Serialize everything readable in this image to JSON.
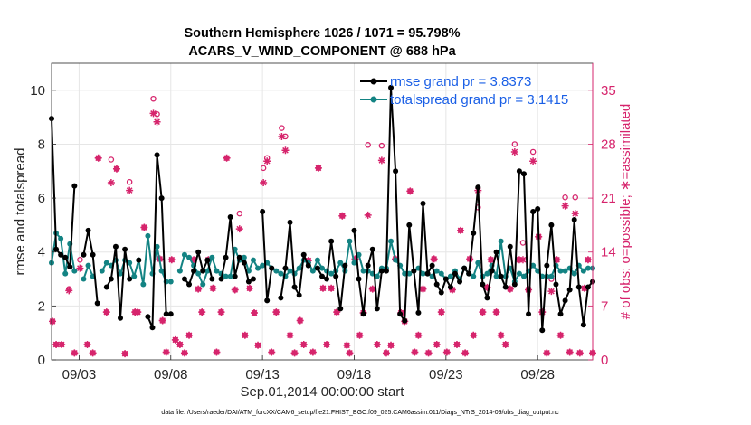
{
  "chart_data": {
    "type": "line",
    "title_line1": "Southern Hemisphere 1026 / 1071 = 95.798%",
    "title_line2": "ACARS_V_WIND_COMPONENT @ 688 hPa",
    "xlabel": "Sep.01,2014 00:00:00 start",
    "ylabel_left": "rmse and totalspread",
    "ylabel_right": "# of obs: o=possible; ∗=assimilated",
    "footnote": "data file: /Users/raeder/DAI/ATM_forcXX/CAM6_setup/f.e21.FHIST_BGC.f09_025.CAM6assim.011/Diags_NTrS_2014-09/obs_diag_output.nc",
    "xlim": [
      1.5,
      31.0
    ],
    "ylim_left": [
      0,
      11
    ],
    "ylim_right": [
      0,
      38.5
    ],
    "x_ticks": [
      {
        "value": 3,
        "label": "09/03"
      },
      {
        "value": 8,
        "label": "09/08"
      },
      {
        "value": 13,
        "label": "09/13"
      },
      {
        "value": 18,
        "label": "09/18"
      },
      {
        "value": 23,
        "label": "09/23"
      },
      {
        "value": 28,
        "label": "09/28"
      }
    ],
    "y_ticks_left": [
      "0",
      "2",
      "4",
      "6",
      "8",
      "10"
    ],
    "y_ticks_right": [
      "0",
      "7",
      "14",
      "21",
      "28",
      "35"
    ],
    "grid": true,
    "legend_placement": "top-right",
    "colors": {
      "rmse": "#000000",
      "totalspread": "#138383",
      "obs": "#d6246c",
      "legend_text": "#1a5fe6",
      "grid": "#e6e6e6"
    },
    "x": [
      1.5,
      1.75,
      2.0,
      2.25,
      2.5,
      2.75,
      3.0,
      3.25,
      3.5,
      3.75,
      4.0,
      4.25,
      4.5,
      4.75,
      5.0,
      5.25,
      5.5,
      5.75,
      6.0,
      6.25,
      6.5,
      6.75,
      7.0,
      7.25,
      7.5,
      7.75,
      8.0,
      8.25,
      8.5,
      8.75,
      9.0,
      9.25,
      9.5,
      9.75,
      10.0,
      10.25,
      10.5,
      10.75,
      11.0,
      11.25,
      11.5,
      11.75,
      12.0,
      12.25,
      12.5,
      12.75,
      13.0,
      13.25,
      13.5,
      13.75,
      14.0,
      14.25,
      14.5,
      14.75,
      15.0,
      15.25,
      15.5,
      15.75,
      16.0,
      16.25,
      16.5,
      16.75,
      17.0,
      17.25,
      17.5,
      17.75,
      18.0,
      18.25,
      18.5,
      18.75,
      19.0,
      19.25,
      19.5,
      19.75,
      20.0,
      20.25,
      20.5,
      20.75,
      21.0,
      21.25,
      21.5,
      21.75,
      22.0,
      22.25,
      22.5,
      22.75,
      23.0,
      23.25,
      23.5,
      23.75,
      24.0,
      24.25,
      24.5,
      24.75,
      25.0,
      25.25,
      25.5,
      25.75,
      26.0,
      26.25,
      26.5,
      26.75,
      27.0,
      27.25,
      27.5,
      27.75,
      28.0,
      28.25,
      28.5,
      28.75,
      29.0,
      29.25,
      29.5,
      29.75,
      30.0,
      30.25,
      30.5,
      30.75,
      31.0
    ],
    "series": [
      {
        "name": "rmse grand pr = 3.8373",
        "legend_label": "rmse grand pr = 3.8373",
        "values": [
          8.95,
          4.1,
          3.9,
          3.8,
          3.45,
          6.45,
          null,
          3.9,
          4.8,
          3.9,
          2.1,
          null,
          2.7,
          3.0,
          4.2,
          1.55,
          4.1,
          3.0,
          null,
          3.7,
          null,
          1.6,
          1.2,
          7.6,
          6.0,
          1.7,
          1.7,
          null,
          null,
          3.0,
          2.8,
          3.3,
          4.0,
          3.3,
          3.7,
          3.0,
          null,
          3.0,
          3.8,
          5.3,
          3.1,
          3.8,
          3.6,
          2.9,
          3.0,
          null,
          5.5,
          2.2,
          3.4,
          null,
          2.3,
          3.4,
          5.1,
          2.7,
          2.4,
          3.9,
          3.5,
          null,
          3.4,
          3.1,
          3.0,
          4.4,
          3.1,
          1.9,
          3.5,
          null,
          4.8,
          3.0,
          1.7,
          3.5,
          4.1,
          1.9,
          3.3,
          3.3,
          10.1,
          7.0,
          1.7,
          1.45,
          5.0,
          3.3,
          1.75,
          5.8,
          3.2,
          3.5,
          2.8,
          2.5,
          3.0,
          2.7,
          3.2,
          2.9,
          3.4,
          3.2,
          4.7,
          6.4,
          2.8,
          2.3,
          3.3,
          4.0,
          3.1,
          2.7,
          4.2,
          2.8,
          7.0,
          6.9,
          1.7,
          5.5,
          5.6,
          1.1,
          3.5,
          5.0,
          2.8,
          1.7,
          2.2,
          2.6,
          5.2,
          2.7,
          1.3,
          2.7,
          2.9
        ]
      },
      {
        "name": "totalspread grand pr = 3.1415",
        "legend_label": "totalspread grand pr = 3.1415",
        "values": [
          3.6,
          4.7,
          4.5,
          3.2,
          4.3,
          3.3,
          null,
          3.0,
          3.5,
          3.1,
          null,
          3.3,
          3.6,
          3.5,
          3.7,
          3.2,
          3.7,
          3.6,
          3.1,
          3.7,
          2.8,
          4.6,
          3.2,
          4.2,
          3.3,
          2.9,
          2.9,
          null,
          3.3,
          3.9,
          3.8,
          3.5,
          3.2,
          2.8,
          3.3,
          3.8,
          3.3,
          3.2,
          3.1,
          3.1,
          4.1,
          3.7,
          3.8,
          3.3,
          3.7,
          3.4,
          3.5,
          3.6,
          3.4,
          3.3,
          3.2,
          3.1,
          3.3,
          3.2,
          3.4,
          3.7,
          3.6,
          3.3,
          3.7,
          3.4,
          3.3,
          3.2,
          3.3,
          3.6,
          3.3,
          4.4,
          3.6,
          3.9,
          3.3,
          3.3,
          3.2,
          3.1,
          3.4,
          3.4,
          4.4,
          3.7,
          3.5,
          3.2,
          3.2,
          3.3,
          3.4,
          3.2,
          3.2,
          3.1,
          3.3,
          3.2,
          3.0,
          3.1,
          3.3,
          3.0,
          3.4,
          3.2,
          3.1,
          3.6,
          3.1,
          3.2,
          3.5,
          3.1,
          4.4,
          3.1,
          3.4,
          2.9,
          3.2,
          3.1,
          3.3,
          3.5,
          3.3,
          3.1,
          3.1,
          3.1,
          3.5,
          3.3,
          3.3,
          3.4,
          3.2,
          3.5,
          3.3,
          3.4,
          3.4
        ]
      }
    ],
    "obs_possible": [
      [
        1.55,
        5.0
      ],
      [
        1.75,
        2.0
      ],
      [
        2.05,
        2.0
      ],
      [
        2.45,
        9.2
      ],
      [
        2.75,
        0.9
      ],
      [
        3.05,
        13.0
      ],
      [
        3.45,
        2.0
      ],
      [
        3.75,
        0.9
      ],
      [
        4.05,
        26.2
      ],
      [
        4.5,
        6.2
      ],
      [
        4.75,
        26.0
      ],
      [
        5.05,
        24.8
      ],
      [
        5.5,
        0.8
      ],
      [
        5.75,
        23.1
      ],
      [
        6.05,
        6.2
      ],
      [
        6.2,
        6.2
      ],
      [
        6.55,
        17.2
      ],
      [
        7.05,
        33.9
      ],
      [
        7.25,
        31.9
      ],
      [
        7.4,
        13.1
      ],
      [
        7.55,
        5.1
      ],
      [
        7.75,
        1.0
      ],
      [
        8.05,
        13.0
      ],
      [
        8.25,
        2.6
      ],
      [
        8.5,
        2.0
      ],
      [
        8.75,
        0.9
      ],
      [
        9.0,
        3.2
      ],
      [
        9.25,
        13.0
      ],
      [
        9.5,
        9.2
      ],
      [
        9.7,
        6.2
      ],
      [
        10.05,
        13.0
      ],
      [
        10.3,
        9.3
      ],
      [
        10.5,
        1.0
      ],
      [
        10.75,
        6.2
      ],
      [
        11.05,
        26.2
      ],
      [
        11.5,
        9.1
      ],
      [
        11.75,
        19.0
      ],
      [
        12.05,
        3.2
      ],
      [
        12.3,
        9.3
      ],
      [
        12.55,
        6.1
      ],
      [
        12.75,
        1.9
      ],
      [
        13.05,
        24.9
      ],
      [
        13.25,
        26.2
      ],
      [
        13.5,
        1.0
      ],
      [
        13.75,
        6.2
      ],
      [
        14.05,
        30.1
      ],
      [
        14.25,
        29.0
      ],
      [
        14.5,
        3.2
      ],
      [
        14.75,
        0.9
      ],
      [
        15.05,
        5.1
      ],
      [
        15.25,
        2.0
      ],
      [
        15.5,
        12.9
      ],
      [
        15.75,
        1.0
      ],
      [
        16.05,
        24.9
      ],
      [
        16.3,
        9.3
      ],
      [
        16.5,
        2.0
      ],
      [
        16.75,
        9.3
      ],
      [
        17.05,
        6.2
      ],
      [
        17.35,
        18.7
      ],
      [
        17.6,
        1.9
      ],
      [
        17.75,
        0.9
      ],
      [
        18.05,
        13.1
      ],
      [
        18.3,
        3.2
      ],
      [
        18.5,
        6.1
      ],
      [
        18.75,
        27.9
      ],
      [
        19.0,
        9.2
      ],
      [
        19.25,
        2.0
      ],
      [
        19.5,
        27.8
      ],
      [
        19.75,
        0.9
      ],
      [
        20.0,
        1.9
      ],
      [
        20.25,
        13.1
      ],
      [
        20.55,
        6.1
      ],
      [
        20.75,
        5.0
      ],
      [
        21.05,
        21.9
      ],
      [
        21.3,
        1.0
      ],
      [
        21.5,
        3.2
      ],
      [
        21.75,
        9.2
      ],
      [
        22.05,
        0.9
      ],
      [
        22.35,
        13.1
      ],
      [
        22.5,
        2.0
      ],
      [
        22.75,
        6.2
      ],
      [
        23.05,
        1.0
      ],
      [
        23.35,
        9.1
      ],
      [
        23.6,
        2.0
      ],
      [
        23.8,
        16.8
      ],
      [
        24.05,
        0.9
      ],
      [
        24.3,
        13.1
      ],
      [
        24.5,
        3.2
      ],
      [
        24.75,
        19.8
      ],
      [
        25.0,
        6.2
      ],
      [
        25.25,
        9.4
      ],
      [
        25.45,
        13.0
      ],
      [
        25.75,
        6.2
      ],
      [
        26.0,
        3.2
      ],
      [
        26.25,
        2.0
      ],
      [
        26.5,
        9.2
      ],
      [
        26.75,
        28.0
      ],
      [
        27.0,
        13.0
      ],
      [
        27.2,
        15.2
      ],
      [
        27.5,
        9.1
      ],
      [
        27.75,
        27.0
      ],
      [
        28.05,
        16.0
      ],
      [
        28.25,
        6.2
      ],
      [
        28.5,
        0.9
      ],
      [
        28.75,
        10.5
      ],
      [
        29.05,
        13.0
      ],
      [
        29.25,
        3.2
      ],
      [
        29.5,
        21.1
      ],
      [
        29.75,
        1.0
      ],
      [
        30.05,
        21.1
      ],
      [
        30.3,
        0.9
      ],
      [
        30.55,
        9.3
      ],
      [
        30.75,
        13.0
      ],
      [
        31.0,
        0.9
      ]
    ],
    "obs_assimilated": [
      [
        1.55,
        5.0
      ],
      [
        1.75,
        2.0
      ],
      [
        2.05,
        2.0
      ],
      [
        2.45,
        9.0
      ],
      [
        2.75,
        0.9
      ],
      [
        3.05,
        11.9
      ],
      [
        3.45,
        2.0
      ],
      [
        3.75,
        0.9
      ],
      [
        4.05,
        26.2
      ],
      [
        4.5,
        6.2
      ],
      [
        4.75,
        23.0
      ],
      [
        5.05,
        24.8
      ],
      [
        5.5,
        0.8
      ],
      [
        5.75,
        22.0
      ],
      [
        6.05,
        6.2
      ],
      [
        6.2,
        6.2
      ],
      [
        6.55,
        17.2
      ],
      [
        7.05,
        32.0
      ],
      [
        7.25,
        30.9
      ],
      [
        7.4,
        13.1
      ],
      [
        7.55,
        5.1
      ],
      [
        7.75,
        1.0
      ],
      [
        8.05,
        13.0
      ],
      [
        8.25,
        2.6
      ],
      [
        8.5,
        2.0
      ],
      [
        8.75,
        0.9
      ],
      [
        9.0,
        3.2
      ],
      [
        9.25,
        13.0
      ],
      [
        9.5,
        9.2
      ],
      [
        9.7,
        6.2
      ],
      [
        10.05,
        13.0
      ],
      [
        10.3,
        9.3
      ],
      [
        10.5,
        1.0
      ],
      [
        10.75,
        6.2
      ],
      [
        11.05,
        26.2
      ],
      [
        11.5,
        9.1
      ],
      [
        11.75,
        17.0
      ],
      [
        12.05,
        3.2
      ],
      [
        12.3,
        9.3
      ],
      [
        12.55,
        6.1
      ],
      [
        12.75,
        1.9
      ],
      [
        13.05,
        23.0
      ],
      [
        13.25,
        25.8
      ],
      [
        13.5,
        1.0
      ],
      [
        13.75,
        6.2
      ],
      [
        14.05,
        29.0
      ],
      [
        14.25,
        27.2
      ],
      [
        14.5,
        3.2
      ],
      [
        14.75,
        0.9
      ],
      [
        15.05,
        5.1
      ],
      [
        15.25,
        2.0
      ],
      [
        15.5,
        12.9
      ],
      [
        15.75,
        1.0
      ],
      [
        16.05,
        24.9
      ],
      [
        16.3,
        9.3
      ],
      [
        16.5,
        2.0
      ],
      [
        16.75,
        9.3
      ],
      [
        17.05,
        6.2
      ],
      [
        17.35,
        18.7
      ],
      [
        17.6,
        1.9
      ],
      [
        17.75,
        0.9
      ],
      [
        18.05,
        13.1
      ],
      [
        18.3,
        3.2
      ],
      [
        18.5,
        6.1
      ],
      [
        18.75,
        18.8
      ],
      [
        19.0,
        9.2
      ],
      [
        19.25,
        2.0
      ],
      [
        19.5,
        25.9
      ],
      [
        19.75,
        0.9
      ],
      [
        20.0,
        1.9
      ],
      [
        20.25,
        13.1
      ],
      [
        20.55,
        6.1
      ],
      [
        20.75,
        5.0
      ],
      [
        21.05,
        21.9
      ],
      [
        21.3,
        1.0
      ],
      [
        21.5,
        3.2
      ],
      [
        21.75,
        9.2
      ],
      [
        22.05,
        0.9
      ],
      [
        22.35,
        13.1
      ],
      [
        22.5,
        2.0
      ],
      [
        22.75,
        6.2
      ],
      [
        23.05,
        1.0
      ],
      [
        23.35,
        9.1
      ],
      [
        23.6,
        2.0
      ],
      [
        23.8,
        16.8
      ],
      [
        24.05,
        0.9
      ],
      [
        24.3,
        13.1
      ],
      [
        24.5,
        3.2
      ],
      [
        24.75,
        22.0
      ],
      [
        25.0,
        6.2
      ],
      [
        25.25,
        9.4
      ],
      [
        25.45,
        13.0
      ],
      [
        25.75,
        6.2
      ],
      [
        26.0,
        3.2
      ],
      [
        26.25,
        2.0
      ],
      [
        26.5,
        9.2
      ],
      [
        26.75,
        27.0
      ],
      [
        27.0,
        13.0
      ],
      [
        27.2,
        13.0
      ],
      [
        27.5,
        9.1
      ],
      [
        27.75,
        25.8
      ],
      [
        28.05,
        16.0
      ],
      [
        28.25,
        6.2
      ],
      [
        28.5,
        0.9
      ],
      [
        28.75,
        8.9
      ],
      [
        29.05,
        13.0
      ],
      [
        29.25,
        3.2
      ],
      [
        29.5,
        20.0
      ],
      [
        29.75,
        1.0
      ],
      [
        30.05,
        19.0
      ],
      [
        30.3,
        0.9
      ],
      [
        30.55,
        9.3
      ],
      [
        30.75,
        13.0
      ],
      [
        31.0,
        0.9
      ]
    ]
  }
}
